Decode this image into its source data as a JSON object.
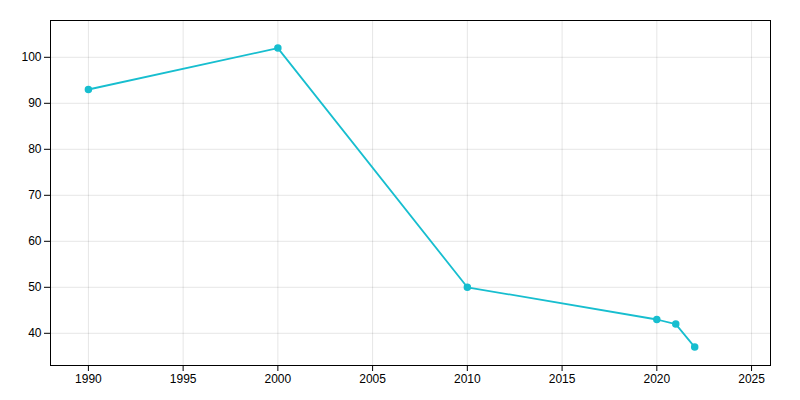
{
  "chart_data": {
    "type": "line",
    "x": [
      1990,
      2000,
      2010,
      2020,
      2021,
      2022
    ],
    "values": [
      93,
      102,
      50,
      43,
      42,
      37
    ],
    "color": "#17becf",
    "marker": "circle",
    "xlim": [
      1988,
      2026
    ],
    "ylim": [
      33,
      108
    ],
    "xticks": [
      1990,
      1995,
      2000,
      2005,
      2010,
      2015,
      2020,
      2025
    ],
    "yticks": [
      40,
      50,
      60,
      70,
      80,
      90,
      100
    ],
    "grid": true
  }
}
